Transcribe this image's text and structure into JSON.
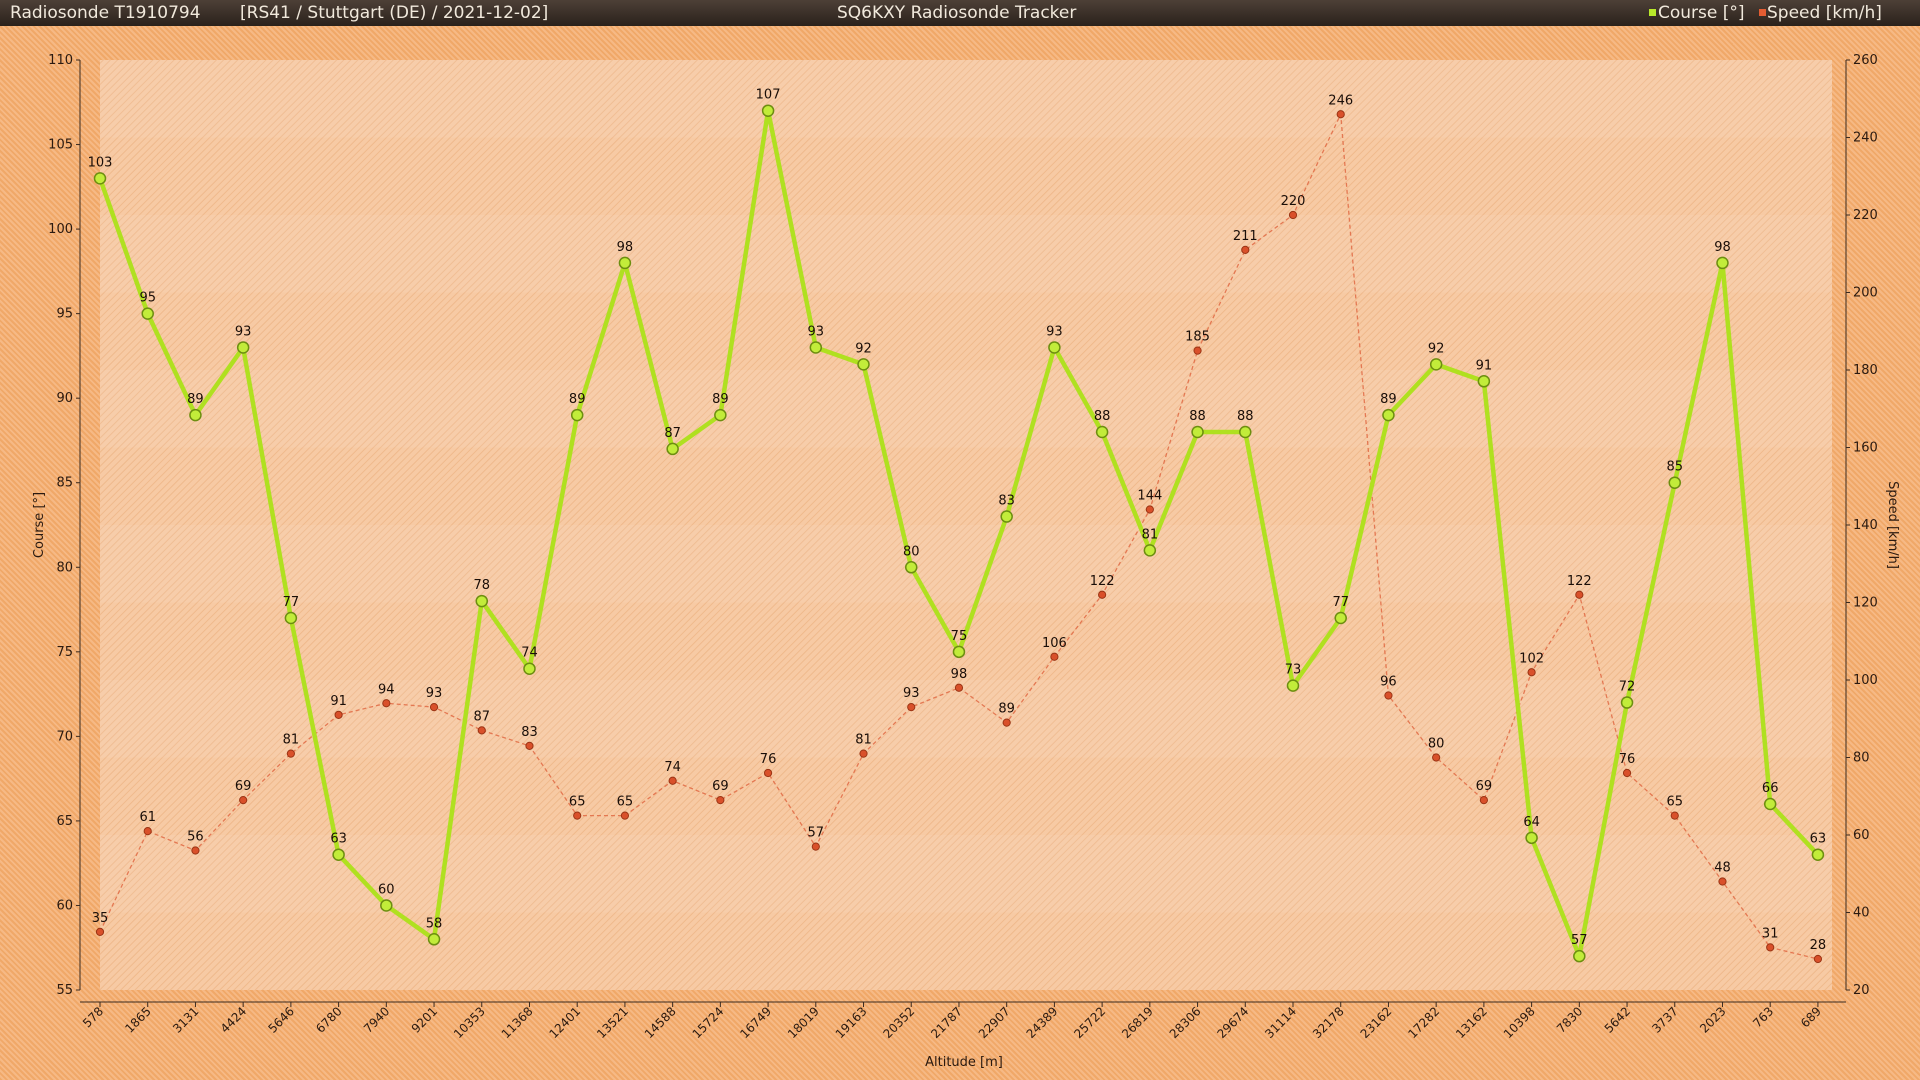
{
  "header": {
    "sonde_id": "Radiosonde T1910794",
    "info": "[RS41 / Stuttgart (DE) / 2021-12-02]",
    "app_title": "SQ6KXY Radiosonde Tracker",
    "legend_course": "Course [°]",
    "legend_speed": "Speed [km/h]"
  },
  "colors": {
    "course": "#b0e020",
    "speed": "#d9502a",
    "plot_bg": "#f6c9a0",
    "titlebar": "#3a2f28"
  },
  "chart_data": {
    "type": "line",
    "xlabel": "Altitude [m]",
    "ylabel_left": "Course [°]",
    "ylabel_right": "Speed [km/h]",
    "ylim_left": [
      55,
      110
    ],
    "ylim_right": [
      20,
      260
    ],
    "yticks_left": [
      55,
      60,
      65,
      70,
      75,
      80,
      85,
      90,
      95,
      100,
      105,
      110
    ],
    "yticks_right": [
      20,
      40,
      60,
      80,
      100,
      120,
      140,
      160,
      180,
      200,
      220,
      240,
      260
    ],
    "categories": [
      "578",
      "1865",
      "3131",
      "4424",
      "5646",
      "6780",
      "7940",
      "9201",
      "10353",
      "11368",
      "12401",
      "13521",
      "14588",
      "15724",
      "16749",
      "18019",
      "19163",
      "20352",
      "21787",
      "22907",
      "24389",
      "25722",
      "26819",
      "28306",
      "29674",
      "31114",
      "32178",
      "23162",
      "17282",
      "13162",
      "10398",
      "7830",
      "5642",
      "3737",
      "2023",
      "763",
      "689"
    ],
    "legend_position": "top-right",
    "series": [
      {
        "name": "Course [°]",
        "axis": "left",
        "style": "thick-solid",
        "values": [
          103,
          95,
          89,
          93,
          77,
          63,
          60,
          58,
          78,
          74,
          89,
          98,
          87,
          89,
          107,
          93,
          92,
          80,
          75,
          83,
          93,
          88,
          81,
          88,
          88,
          73,
          77,
          89,
          92,
          91,
          64,
          57,
          72,
          85,
          98,
          66,
          63
        ]
      },
      {
        "name": "Speed [km/h]",
        "axis": "right",
        "style": "thin-dashed",
        "values": [
          35,
          61,
          56,
          69,
          81,
          91,
          94,
          93,
          87,
          83,
          65,
          65,
          74,
          69,
          76,
          57,
          81,
          93,
          98,
          89,
          106,
          122,
          144,
          185,
          211,
          220,
          246,
          96,
          80,
          69,
          102,
          122,
          76,
          65,
          48,
          31,
          28
        ]
      }
    ]
  }
}
